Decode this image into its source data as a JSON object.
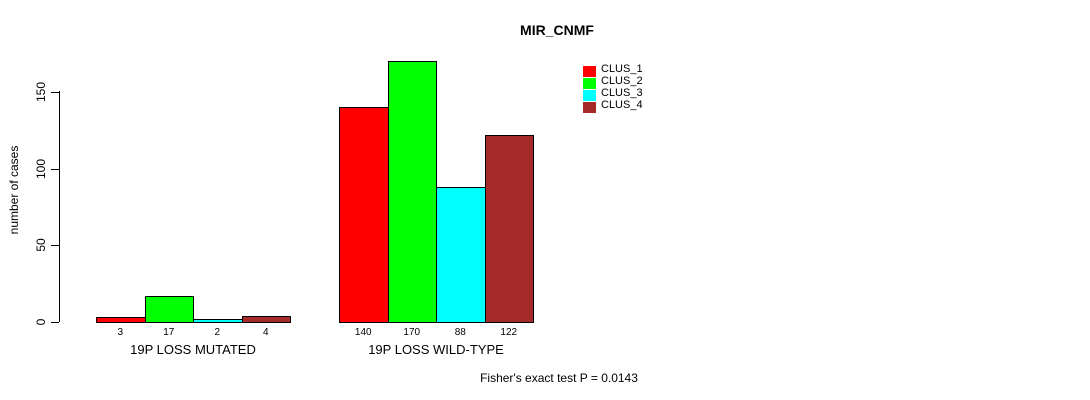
{
  "title": "MIR_CNMF",
  "y_axis": {
    "label": "number of cases",
    "ticks": [
      0,
      50,
      100,
      150
    ]
  },
  "footer": "Fisher's exact test P = 0.0143",
  "chart_data": {
    "type": "bar",
    "title": "MIR_CNMF",
    "ylabel": "number of cases",
    "xlabel": "",
    "ylim": [
      0,
      150
    ],
    "yticks": [
      0,
      50,
      100,
      150
    ],
    "grid": false,
    "legend_position": "top-right",
    "categories": [
      "19P LOSS MUTATED",
      "19P LOSS WILD-TYPE"
    ],
    "series": [
      {
        "name": "CLUS_1",
        "color": "#ff0000",
        "values": [
          3,
          140
        ]
      },
      {
        "name": "CLUS_2",
        "color": "#00ff00",
        "values": [
          17,
          170
        ]
      },
      {
        "name": "CLUS_3",
        "color": "#00ffff",
        "values": [
          2,
          88
        ]
      },
      {
        "name": "CLUS_4",
        "color": "#a52a2a",
        "values": [
          4,
          122
        ]
      }
    ],
    "bar_value_labels": [
      [
        "3",
        "17",
        "2",
        "4"
      ],
      [
        "140",
        "170",
        "88",
        "122"
      ]
    ],
    "annotation": "Fisher's exact test P = 0.0143"
  }
}
